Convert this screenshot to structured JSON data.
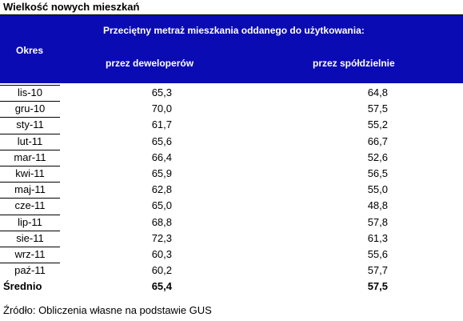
{
  "title": "Wielkość nowych mieszkań",
  "header": {
    "okres": "Okres",
    "main": "Przeciętny metraż mieszkania oddanego do użytkowania:",
    "developers": "przez deweloperów",
    "cooperatives": "przez spółdzielnie"
  },
  "rows": [
    {
      "period": "lis-10",
      "dev": "65,3",
      "coop": "64,8"
    },
    {
      "period": "gru-10",
      "dev": "70,0",
      "coop": "57,5"
    },
    {
      "period": "sty-11",
      "dev": "61,7",
      "coop": "55,2"
    },
    {
      "period": "lut-11",
      "dev": "65,6",
      "coop": "66,7"
    },
    {
      "period": "mar-11",
      "dev": "66,4",
      "coop": "52,6"
    },
    {
      "period": "kwi-11",
      "dev": "65,9",
      "coop": "56,5"
    },
    {
      "period": "maj-11",
      "dev": "62,8",
      "coop": "55,0"
    },
    {
      "period": "cze-11",
      "dev": "65,0",
      "coop": "48,8"
    },
    {
      "period": "lip-11",
      "dev": "68,8",
      "coop": "57,8"
    },
    {
      "period": "sie-11",
      "dev": "72,3",
      "coop": "61,3"
    },
    {
      "period": "wrz-11",
      "dev": "60,3",
      "coop": "55,6"
    },
    {
      "period": "paź-11",
      "dev": "60,2",
      "coop": "57,7"
    }
  ],
  "average": {
    "label": "Średnio",
    "dev": "65,4",
    "coop": "57,5"
  },
  "source": "Źródło: Obliczenia własne na podstawie GUS",
  "colors": {
    "header_bg": "#0b0bb4",
    "header_text": "#ffffff"
  }
}
